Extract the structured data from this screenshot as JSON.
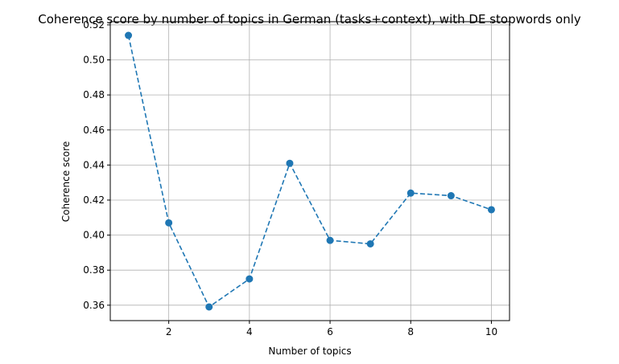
{
  "chart_data": {
    "type": "line",
    "title": "Coherence score by number of topics in German (tasks+context), with DE stopwords only",
    "xlabel": "Number of topics",
    "ylabel": "Coherence score",
    "x": [
      1,
      2,
      3,
      4,
      5,
      6,
      7,
      8,
      9,
      10
    ],
    "series": [
      {
        "values": [
          0.514,
          0.407,
          0.359,
          0.375,
          0.441,
          0.397,
          0.395,
          0.424,
          0.4225,
          0.4145
        ],
        "color": "#1f77b4",
        "line_style": "dashed",
        "marker": "circle"
      }
    ],
    "xlim": [
      0.55,
      10.45
    ],
    "ylim": [
      0.3512,
      0.5218
    ],
    "xticks": [
      2,
      4,
      6,
      8,
      10
    ],
    "xtick_labels": [
      "2",
      "4",
      "6",
      "8",
      "10"
    ],
    "yticks": [
      0.36,
      0.38,
      0.4,
      0.42,
      0.44,
      0.46,
      0.48,
      0.5,
      0.52
    ],
    "ytick_labels": [
      "0.36",
      "0.38",
      "0.40",
      "0.42",
      "0.44",
      "0.46",
      "0.48",
      "0.50",
      "0.52"
    ],
    "grid": true,
    "legend": "none"
  }
}
